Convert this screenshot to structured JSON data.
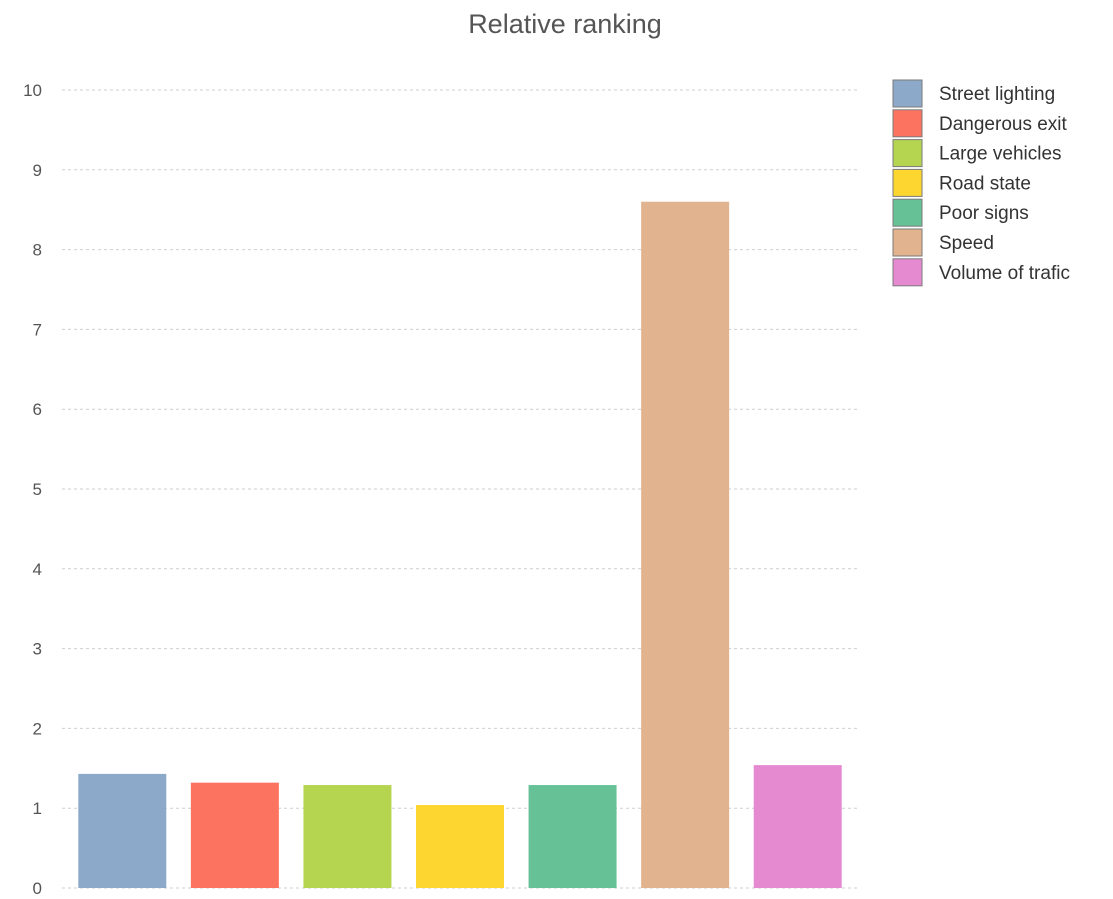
{
  "chart_data": {
    "type": "bar",
    "title": "Relative ranking",
    "xlabel": "",
    "ylabel": "",
    "ylim": [
      0,
      10
    ],
    "yticks": [
      "0",
      "1",
      "2",
      "3",
      "4",
      "5",
      "6",
      "7",
      "8",
      "9",
      "10"
    ],
    "grid": true,
    "legend_position": "top-right",
    "categories": [
      "Street lighting",
      "Dangerous exit",
      "Large vehicles",
      "Road state",
      "Poor signs",
      "Speed",
      "Volume of trafic"
    ],
    "values": [
      1.43,
      1.32,
      1.29,
      1.04,
      1.29,
      8.6,
      1.54
    ],
    "colors": [
      "#8da9c9",
      "#fc7460",
      "#b5d551",
      "#fed630",
      "#66c196",
      "#e2b38f",
      "#e58ad0"
    ]
  }
}
